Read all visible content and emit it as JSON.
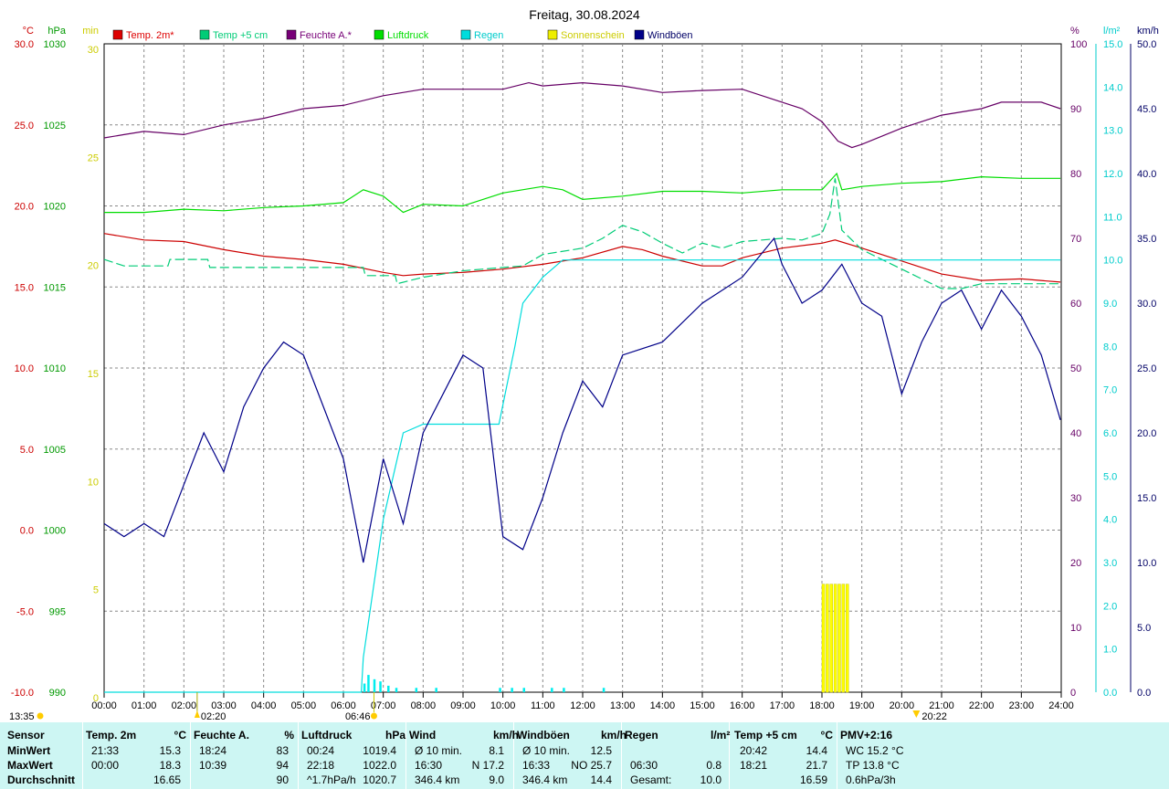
{
  "chart_data": {
    "type": "line",
    "title": "Freitag, 30.08.2024",
    "x_ticks": [
      "00:00",
      "01:00",
      "02:00",
      "03:00",
      "04:00",
      "05:00",
      "06:00",
      "07:00",
      "08:00",
      "09:00",
      "10:00",
      "11:00",
      "12:00",
      "13:00",
      "14:00",
      "15:00",
      "16:00",
      "17:00",
      "18:00",
      "19:00",
      "20:00",
      "21:00",
      "22:00",
      "23:00",
      "24:00"
    ],
    "axes": {
      "temp_c": {
        "unit": "°C",
        "range": [
          -10,
          30
        ],
        "ticks": [
          "30.0",
          "25.0",
          "20.0",
          "15.0",
          "10.0",
          "5.0",
          "0.0",
          "-5.0",
          "-10.0"
        ],
        "color": "#cc0000"
      },
      "pressure_hpa": {
        "unit": "hPa",
        "range": [
          990,
          1030
        ],
        "ticks": [
          "1030",
          "1025",
          "1020",
          "1015",
          "1010",
          "1005",
          "1000",
          "995",
          "990"
        ],
        "color": "#009900"
      },
      "sunshine_min": {
        "unit": "min",
        "range": [
          0,
          30
        ],
        "ticks": [
          "30",
          "25",
          "20",
          "15",
          "10",
          "5",
          "0"
        ],
        "color": "#cccc00"
      },
      "humidity_pct": {
        "unit": "%",
        "range": [
          0,
          100
        ],
        "ticks": [
          "100",
          "90",
          "80",
          "70",
          "60",
          "50",
          "40",
          "30",
          "20",
          "10",
          "0"
        ],
        "color": "#660066"
      },
      "rain_lm2": {
        "unit": "l/m²",
        "range": [
          0,
          15
        ],
        "ticks": [
          "15.0",
          "14.0",
          "13.0",
          "12.0",
          "11.0",
          "10.0",
          "9.0",
          "8.0",
          "7.0",
          "6.0",
          "5.0",
          "4.0",
          "3.0",
          "2.0",
          "1.0",
          "0.0"
        ],
        "color": "#00cccc"
      },
      "wind_kmh": {
        "unit": "km/h",
        "range": [
          0,
          50
        ],
        "ticks": [
          "50.0",
          "45.0",
          "40.0",
          "35.0",
          "30.0",
          "25.0",
          "20.0",
          "15.0",
          "10.0",
          "5.0",
          "0.0"
        ],
        "color": "#000066"
      }
    },
    "legend": [
      {
        "name": "Temp. 2m*",
        "color": "#dd0000"
      },
      {
        "name": "Temp +5 cm",
        "color": "#00cc77"
      },
      {
        "name": "Feuchte A.*",
        "color": "#770077"
      },
      {
        "name": "Luftdruck",
        "color": "#00dd00"
      },
      {
        "name": "Regen",
        "color": "#00dddd"
      },
      {
        "name": "Sonnenschein",
        "color": "#eeee00"
      },
      {
        "name": "Windböen",
        "color": "#000088"
      }
    ],
    "series": [
      {
        "name": "Temp. 2m*",
        "axis": "temp_c",
        "color": "#cc0000",
        "points": [
          [
            0,
            18.3
          ],
          [
            1,
            17.9
          ],
          [
            2,
            17.8
          ],
          [
            3,
            17.3
          ],
          [
            4,
            16.9
          ],
          [
            5,
            16.7
          ],
          [
            6,
            16.4
          ],
          [
            7,
            15.9
          ],
          [
            7.5,
            15.7
          ],
          [
            8,
            15.8
          ],
          [
            9,
            15.9
          ],
          [
            10,
            16.1
          ],
          [
            11,
            16.4
          ],
          [
            12,
            16.8
          ],
          [
            13,
            17.5
          ],
          [
            13.5,
            17.3
          ],
          [
            14,
            16.9
          ],
          [
            15,
            16.3
          ],
          [
            15.5,
            16.3
          ],
          [
            16,
            16.8
          ],
          [
            17,
            17.4
          ],
          [
            18,
            17.7
          ],
          [
            18.33,
            17.9
          ],
          [
            19,
            17.4
          ],
          [
            20,
            16.6
          ],
          [
            21,
            15.8
          ],
          [
            22,
            15.4
          ],
          [
            23,
            15.5
          ],
          [
            23.98,
            15.3
          ]
        ]
      },
      {
        "name": "Temp +5 cm",
        "axis": "temp_c",
        "color": "#00cc77",
        "points": [
          [
            0,
            16.7
          ],
          [
            0.5,
            16.3
          ],
          [
            1.6,
            16.3
          ],
          [
            1.65,
            16.7
          ],
          [
            2.6,
            16.7
          ],
          [
            2.65,
            16.2
          ],
          [
            6.5,
            16.2
          ],
          [
            6.55,
            15.7
          ],
          [
            7.3,
            15.7
          ],
          [
            7.35,
            15.2
          ],
          [
            8,
            15.6
          ],
          [
            9,
            16.0
          ],
          [
            10,
            16.2
          ],
          [
            10.5,
            16.3
          ],
          [
            11,
            17.0
          ],
          [
            12,
            17.4
          ],
          [
            12.5,
            18.0
          ],
          [
            13,
            18.8
          ],
          [
            13.5,
            18.4
          ],
          [
            14,
            17.7
          ],
          [
            14.5,
            17.1
          ],
          [
            15,
            17.7
          ],
          [
            15.5,
            17.4
          ],
          [
            16,
            17.8
          ],
          [
            16.5,
            17.9
          ],
          [
            17,
            18.0
          ],
          [
            17.5,
            17.9
          ],
          [
            18,
            18.3
          ],
          [
            18.2,
            19.5
          ],
          [
            18.33,
            21.7
          ],
          [
            18.5,
            18.5
          ],
          [
            19,
            17.3
          ],
          [
            19.5,
            16.7
          ],
          [
            20,
            16.1
          ],
          [
            20.5,
            15.5
          ],
          [
            21,
            14.9
          ],
          [
            21.5,
            14.9
          ],
          [
            22,
            15.2
          ],
          [
            23.98,
            15.2
          ]
        ]
      },
      {
        "name": "Feuchte A.*",
        "axis": "humidity_pct",
        "color": "#660066",
        "points": [
          [
            0,
            85.5
          ],
          [
            0.5,
            86.0
          ],
          [
            1,
            86.5
          ],
          [
            2,
            86.0
          ],
          [
            3,
            87.5
          ],
          [
            4,
            88.5
          ],
          [
            5,
            90.0
          ],
          [
            6,
            90.5
          ],
          [
            7,
            92.0
          ],
          [
            8,
            93.0
          ],
          [
            9,
            93.0
          ],
          [
            10,
            93.0
          ],
          [
            10.65,
            94.0
          ],
          [
            11,
            93.5
          ],
          [
            12,
            94.0
          ],
          [
            13,
            93.5
          ],
          [
            14,
            92.5
          ],
          [
            15,
            92.8
          ],
          [
            16,
            93.0
          ],
          [
            17,
            91.0
          ],
          [
            17.5,
            90.0
          ],
          [
            18,
            88.0
          ],
          [
            18.4,
            85.0
          ],
          [
            18.75,
            84.0
          ],
          [
            19,
            84.5
          ],
          [
            20,
            87.0
          ],
          [
            21,
            89.0
          ],
          [
            22,
            90.0
          ],
          [
            22.5,
            91.0
          ],
          [
            23.5,
            91.0
          ],
          [
            23.98,
            90.0
          ]
        ]
      },
      {
        "name": "Luftdruck",
        "axis": "pressure_hpa",
        "color": "#00dd00",
        "points": [
          [
            0,
            1019.6
          ],
          [
            1,
            1019.6
          ],
          [
            2,
            1019.8
          ],
          [
            3,
            1019.7
          ],
          [
            4,
            1019.9
          ],
          [
            5,
            1020.0
          ],
          [
            6,
            1020.2
          ],
          [
            6.5,
            1021.0
          ],
          [
            7,
            1020.6
          ],
          [
            7.5,
            1019.6
          ],
          [
            8,
            1020.1
          ],
          [
            9,
            1020.0
          ],
          [
            10,
            1020.8
          ],
          [
            11,
            1021.2
          ],
          [
            11.5,
            1021.0
          ],
          [
            12,
            1020.4
          ],
          [
            13,
            1020.6
          ],
          [
            14,
            1020.9
          ],
          [
            15,
            1020.9
          ],
          [
            16,
            1020.8
          ],
          [
            17,
            1021.0
          ],
          [
            18,
            1021.0
          ],
          [
            18.37,
            1022.0
          ],
          [
            18.5,
            1021.0
          ],
          [
            19,
            1021.2
          ],
          [
            20,
            1021.4
          ],
          [
            21,
            1021.5
          ],
          [
            22,
            1021.8
          ],
          [
            23,
            1021.7
          ],
          [
            23.98,
            1021.7
          ]
        ]
      },
      {
        "name": "Regen",
        "axis": "rain_lm2",
        "color": "#00dddd",
        "points": [
          [
            0,
            0
          ],
          [
            6.45,
            0
          ],
          [
            6.5,
            0.8
          ],
          [
            7,
            4.0
          ],
          [
            7.5,
            6.0
          ],
          [
            8,
            6.2
          ],
          [
            9,
            6.2
          ],
          [
            9.9,
            6.2
          ],
          [
            10.3,
            8.0
          ],
          [
            10.5,
            9.0
          ],
          [
            11,
            9.6
          ],
          [
            11.5,
            10.0
          ],
          [
            11.9,
            10.0
          ],
          [
            12,
            10.0
          ],
          [
            23.98,
            10.0
          ]
        ]
      },
      {
        "name": "Windböen",
        "axis": "wind_kmh",
        "color": "#000088",
        "points": [
          [
            0,
            13
          ],
          [
            0.5,
            12
          ],
          [
            1,
            13
          ],
          [
            1.5,
            12
          ],
          [
            2,
            16
          ],
          [
            2.5,
            20
          ],
          [
            3,
            17
          ],
          [
            3.5,
            22
          ],
          [
            4,
            25
          ],
          [
            4.5,
            27
          ],
          [
            5,
            26
          ],
          [
            5.5,
            22
          ],
          [
            6,
            18
          ],
          [
            6.5,
            10
          ],
          [
            7,
            18
          ],
          [
            7.5,
            13
          ],
          [
            8,
            20
          ],
          [
            9,
            26
          ],
          [
            9.5,
            25
          ],
          [
            10,
            12
          ],
          [
            10.5,
            11
          ],
          [
            11,
            15
          ],
          [
            11.5,
            20
          ],
          [
            12,
            24
          ],
          [
            12.5,
            22
          ],
          [
            13,
            26
          ],
          [
            14,
            27
          ],
          [
            15,
            30
          ],
          [
            16,
            32
          ],
          [
            16.8,
            35
          ],
          [
            17,
            33
          ],
          [
            17.5,
            30
          ],
          [
            18,
            31
          ],
          [
            18.5,
            33
          ],
          [
            19,
            30
          ],
          [
            19.5,
            29
          ],
          [
            20,
            23
          ],
          [
            20.5,
            27
          ],
          [
            21,
            30
          ],
          [
            21.5,
            31
          ],
          [
            22,
            28
          ],
          [
            22.5,
            31
          ],
          [
            23,
            29
          ],
          [
            23.5,
            26
          ],
          [
            23.98,
            21
          ]
        ]
      }
    ],
    "sunshine_minutes": [
      [
        18,
        5
      ],
      [
        18.1,
        5
      ],
      [
        18.2,
        5
      ],
      [
        18.3,
        5
      ],
      [
        18.4,
        5
      ],
      [
        18.5,
        5
      ],
      [
        18.6,
        5
      ]
    ],
    "rain_per_interval": [
      [
        6.5,
        0.2
      ],
      [
        6.6,
        0.4
      ],
      [
        6.75,
        0.3
      ],
      [
        6.9,
        0.25
      ],
      [
        7.1,
        0.15
      ],
      [
        7.3,
        0.1
      ],
      [
        7.8,
        0.1
      ],
      [
        8.3,
        0.1
      ],
      [
        9.9,
        0.1
      ],
      [
        10.2,
        0.1
      ],
      [
        10.5,
        0.1
      ],
      [
        11.2,
        0.1
      ],
      [
        11.5,
        0.1
      ],
      [
        12.5,
        0.1
      ]
    ],
    "markers": {
      "sunrise": "06:46",
      "sunset": "20:22",
      "moonrise": "02:20",
      "moonset": "13:35"
    }
  },
  "stats": {
    "headers": [
      {
        "name": "Sensor",
        "unit": ""
      },
      {
        "name": "Temp. 2m",
        "unit": "°C"
      },
      {
        "name": "Feuchte A.",
        "unit": "%"
      },
      {
        "name": "Luftdruck",
        "unit": "hPa"
      },
      {
        "name": "Wind",
        "unit": "km/h"
      },
      {
        "name": "Windböen",
        "unit": "km/h"
      },
      {
        "name": "Regen",
        "unit": "l/m²"
      },
      {
        "name": "Temp +5 cm",
        "unit": "°C"
      },
      {
        "name": "PMV+2:16",
        "unit": ""
      }
    ],
    "rows": [
      {
        "label": "MinWert",
        "cells": [
          [
            "21:33",
            "15.3"
          ],
          [
            "18:24",
            "83"
          ],
          [
            "00:24",
            "1019.4"
          ],
          [
            "Ø 10 min.",
            "8.1"
          ],
          [
            "Ø 10 min.",
            "12.5"
          ],
          [
            "",
            ""
          ],
          [
            "20:42",
            "14.4"
          ],
          [
            "WC 15.2 °C",
            ""
          ]
        ]
      },
      {
        "label": "MaxWert",
        "cells": [
          [
            "00:00",
            "18.3"
          ],
          [
            "10:39",
            "94"
          ],
          [
            "22:18",
            "1022.0"
          ],
          [
            "16:30",
            "N 17.2"
          ],
          [
            "16:33",
            "NO 25.7"
          ],
          [
            "06:30",
            "0.8"
          ],
          [
            "18:21",
            "21.7"
          ],
          [
            "TP 13.8 °C",
            ""
          ]
        ]
      },
      {
        "label": "Durchschnitt",
        "cells": [
          [
            "",
            "16.65"
          ],
          [
            "",
            "90"
          ],
          [
            "^1.7hPa/h",
            "1020.7"
          ],
          [
            "346.4 km",
            "9.0"
          ],
          [
            "346.4 km",
            "14.4"
          ],
          [
            "Gesamt:",
            "10.0"
          ],
          [
            "",
            "16.59"
          ],
          [
            "0.6hPa/3h",
            ""
          ]
        ]
      }
    ]
  }
}
